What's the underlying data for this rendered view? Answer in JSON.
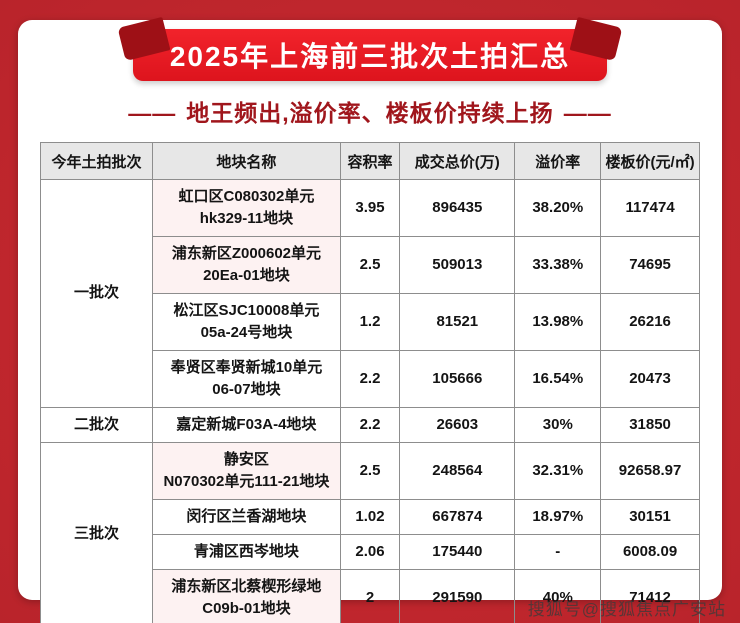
{
  "page": {
    "title": "2025年上海前三批次土拍汇总",
    "dash": "——",
    "subtitle": "地王频出,溢价率、楼板价持续上扬",
    "watermark": "搜狐号@搜狐焦点广安站"
  },
  "chart_data": {
    "type": "table",
    "title": "2025年上海前三批次土拍汇总",
    "subtitle": "地王频出,溢价率、楼板价持续上扬",
    "columns": [
      "今年土拍批次",
      "地块名称",
      "容积率",
      "成交总价(万)",
      "溢价率",
      "楼板价(元/㎡)"
    ],
    "batch_groups": [
      {
        "batch": "一批次",
        "row_start": 0,
        "row_count": 4
      },
      {
        "batch": "二批次",
        "row_start": 4,
        "row_count": 1
      },
      {
        "batch": "三批次",
        "row_start": 5,
        "row_count": 4
      }
    ],
    "rows": [
      {
        "batch": "一批次",
        "name": "虹口区C080302单元\nhk329-11地块",
        "far": "3.95",
        "price": "896435",
        "premium": "38.20%",
        "floor": "117474",
        "red": true
      },
      {
        "name": "浦东新区Z000602单元\n20Ea-01地块",
        "far": "2.5",
        "price": "509013",
        "premium": "33.38%",
        "floor": "74695",
        "red": true
      },
      {
        "name": "松江区SJC10008单元\n05a-24号地块",
        "far": "1.2",
        "price": "81521",
        "premium": "13.98%",
        "floor": "26216",
        "red": false
      },
      {
        "name": "奉贤区奉贤新城10单元\n06-07地块",
        "far": "2.2",
        "price": "105666",
        "premium": "16.54%",
        "floor": "20473",
        "red": false
      },
      {
        "batch": "二批次",
        "name": "嘉定新城F03A-4地块",
        "far": "2.2",
        "price": "26603",
        "premium": "30%",
        "floor": "31850",
        "red": false
      },
      {
        "batch": "三批次",
        "name": "静安区\nN070302单元111-21地块",
        "far": "2.5",
        "price": "248564",
        "premium": "32.31%",
        "floor": "92658.97",
        "red": true
      },
      {
        "name": "闵行区兰香湖地块",
        "far": "1.02",
        "price": "667874",
        "premium": "18.97%",
        "floor": "30151",
        "red": false
      },
      {
        "name": "青浦区西岑地块",
        "far": "2.06",
        "price": "175440",
        "premium": "-",
        "floor": "6008.09",
        "red": false
      },
      {
        "name": "浦东新区北蔡楔形绿地\nC09b-01地块",
        "far": "2",
        "price": "291590",
        "premium": "40%",
        "floor": "71412",
        "red": true
      }
    ]
  }
}
